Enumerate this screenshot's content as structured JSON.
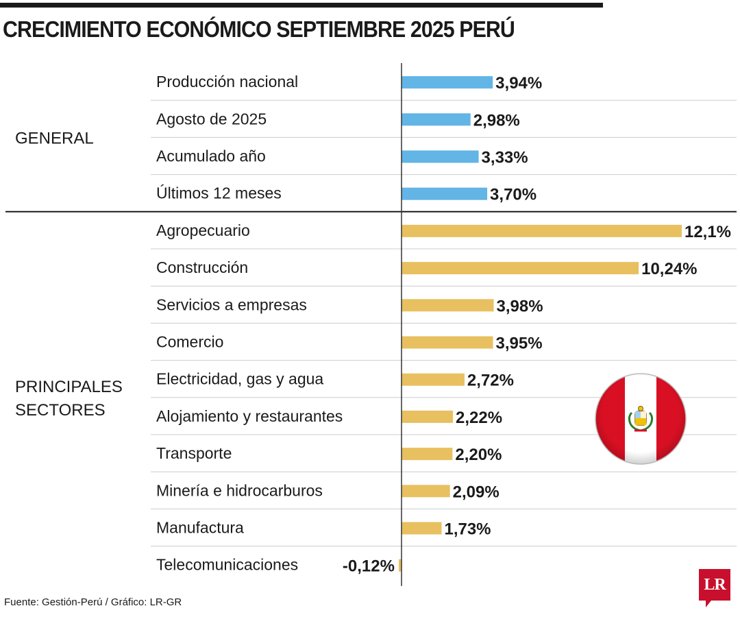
{
  "title": "CRECIMIENTO ECONÓMICO SEPTIEMBRE 2025 PERÚ",
  "source": "Fuente: Gestión-Perú / Gráfico: LR-GR",
  "logo_text": "LR",
  "colors": {
    "general": "#62b5e5",
    "sectores": "#e8c060",
    "flag_red": "#d91023",
    "rule": "#1a1a1a",
    "grid": "#cccccc"
  },
  "chart_data": {
    "type": "bar",
    "orientation": "horizontal",
    "unit": "%",
    "groups": [
      {
        "label_lines": [
          "GENERAL"
        ],
        "categories": [
          "Producción nacional",
          "Agosto de 2025",
          "Acumulado año",
          "Últimos 12 meses"
        ],
        "values": [
          3.94,
          2.98,
          3.33,
          3.7
        ],
        "labels": [
          "3,94%",
          "2,98%",
          "3,33%",
          "3,70%"
        ]
      },
      {
        "label_lines": [
          "PRINCIPALES",
          "SECTORES"
        ],
        "categories": [
          "Agropecuario",
          "Construcción",
          "Servicios a empresas",
          "Comercio",
          "Electricidad, gas y agua",
          "Alojamiento y restaurantes",
          "Transporte",
          "Minería e hidrocarburos",
          "Manufactura",
          "Telecomunicaciones"
        ],
        "values": [
          12.1,
          10.24,
          3.98,
          3.95,
          2.72,
          2.22,
          2.2,
          2.09,
          1.73,
          -0.12
        ],
        "labels": [
          "12,1%",
          "10,24%",
          "3,98%",
          "3,95%",
          "2,72%",
          "2,22%",
          "2,20%",
          "2,09%",
          "1,73%",
          "-0,12%"
        ]
      }
    ],
    "legend": "none",
    "grid": false
  }
}
